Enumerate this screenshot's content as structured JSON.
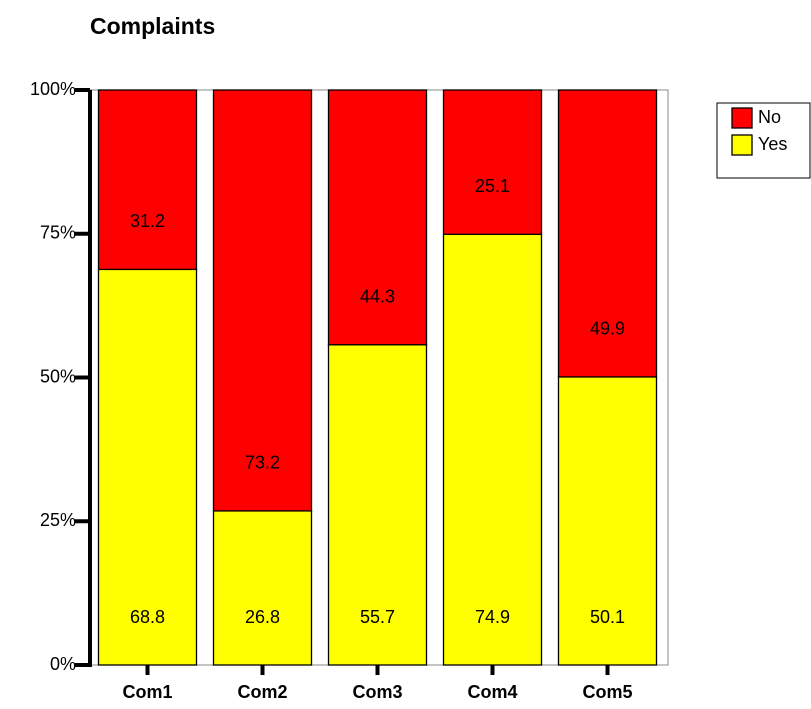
{
  "chart_data": {
    "type": "stacked_bar",
    "title": "Complaints",
    "categories": [
      "Com1",
      "Com2",
      "Com3",
      "Com4",
      "Com5"
    ],
    "series": [
      {
        "name": "Yes",
        "color": "#ffff00",
        "values": [
          68.8,
          26.8,
          55.7,
          74.9,
          50.1
        ]
      },
      {
        "name": "No",
        "color": "#ff0000",
        "values": [
          31.2,
          73.2,
          44.3,
          25.1,
          49.9
        ]
      }
    ],
    "ylim": [
      0,
      100
    ],
    "yticks": [
      {
        "value": 0,
        "label": "0%"
      },
      {
        "value": 25,
        "label": "25%"
      },
      {
        "value": 50,
        "label": "50%"
      },
      {
        "value": 75,
        "label": "75%"
      },
      {
        "value": 100,
        "label": "100%"
      }
    ],
    "legend": "right"
  }
}
